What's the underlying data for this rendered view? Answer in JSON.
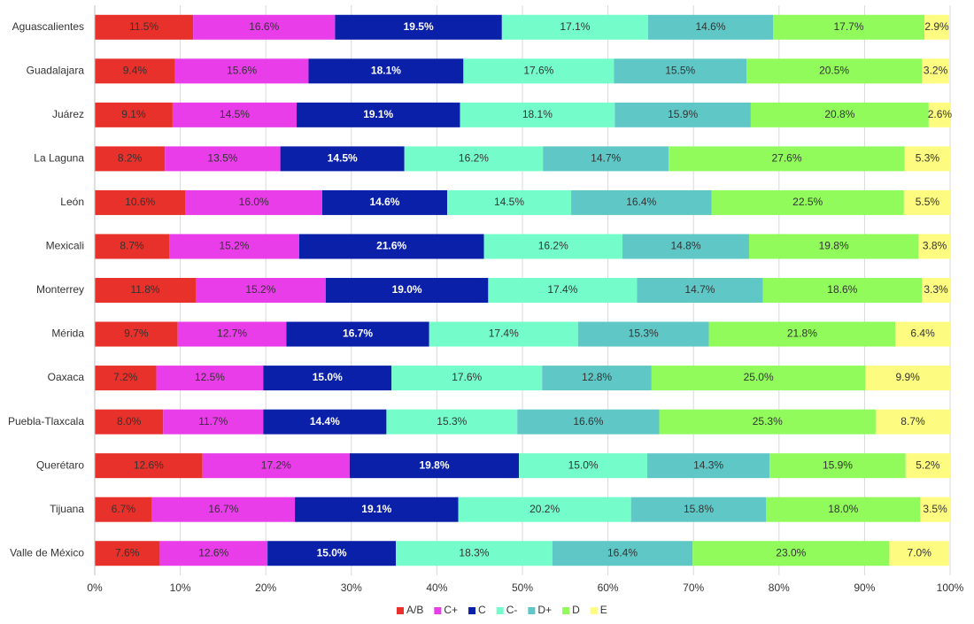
{
  "chart_data": {
    "type": "stacked-bar-horizontal",
    "categories": [
      "Aguascalientes",
      "Guadalajara",
      "Juárez",
      "La Laguna",
      "León",
      "Mexicali",
      "Monterrey",
      "Mérida",
      "Oaxaca",
      "Puebla-Tlaxcala",
      "Querétaro",
      "Tijuana",
      "Valle de México"
    ],
    "series": [
      {
        "name": "A/B",
        "color": "#e8312a",
        "values": [
          11.5,
          9.4,
          9.1,
          8.2,
          10.6,
          8.7,
          11.8,
          9.7,
          7.2,
          8.0,
          12.6,
          6.7,
          7.6
        ],
        "value_labels": [
          "11.5%",
          "9.4%",
          "9.1%",
          "8.2%",
          "10.6%",
          "8.7%",
          "11.8%",
          "9.7%",
          "7.2%",
          "8.0%",
          "12.6%",
          "6.7%",
          "7.6%"
        ]
      },
      {
        "name": "C+",
        "color": "#e83de8",
        "values": [
          16.6,
          15.6,
          14.5,
          13.5,
          16.0,
          15.2,
          15.2,
          12.7,
          12.5,
          11.7,
          17.2,
          16.7,
          12.6
        ],
        "value_labels": [
          "16.6%",
          "15.6%",
          "14.5%",
          "13.5%",
          "16.0%",
          "15.2%",
          "15.2%",
          "12.7%",
          "12.5%",
          "11.7%",
          "17.2%",
          "16.7%",
          "12.6%"
        ]
      },
      {
        "name": "C",
        "color": "#0b20a8",
        "values": [
          19.5,
          18.1,
          19.1,
          14.5,
          14.6,
          21.6,
          19.0,
          16.7,
          15.0,
          14.4,
          19.8,
          19.1,
          15.0
        ],
        "value_labels": [
          "19.5%",
          "18.1%",
          "19.1%",
          "14.5%",
          "14.6%",
          "21.6%",
          "19.0%",
          "16.7%",
          "15.0%",
          "14.4%",
          "19.8%",
          "19.1%",
          "15.0%"
        ]
      },
      {
        "name": "C-",
        "color": "#75fccb",
        "values": [
          17.1,
          17.6,
          18.1,
          16.2,
          14.5,
          16.2,
          17.4,
          17.4,
          17.6,
          15.3,
          15.0,
          20.2,
          18.3
        ],
        "value_labels": [
          "17.1%",
          "17.6%",
          "18.1%",
          "16.2%",
          "14.5%",
          "16.2%",
          "17.4%",
          "17.4%",
          "17.6%",
          "15.3%",
          "15.0%",
          "20.2%",
          "18.3%"
        ]
      },
      {
        "name": "D+",
        "color": "#60c7c7",
        "values": [
          14.6,
          15.5,
          15.9,
          14.7,
          16.4,
          14.8,
          14.7,
          15.3,
          12.8,
          16.6,
          14.3,
          15.8,
          16.4
        ],
        "value_labels": [
          "14.6%",
          "15.5%",
          "15.9%",
          "14.7%",
          "16.4%",
          "14.8%",
          "14.7%",
          "15.3%",
          "12.8%",
          "16.6%",
          "14.3%",
          "15.8%",
          "16.4%"
        ]
      },
      {
        "name": "D",
        "color": "#90fb5b",
        "values": [
          17.7,
          20.5,
          20.8,
          27.6,
          22.5,
          19.8,
          18.6,
          21.8,
          25.0,
          25.3,
          15.9,
          18.0,
          23.0
        ],
        "value_labels": [
          "17.7%",
          "20.5%",
          "20.8%",
          "27.6%",
          "22.5%",
          "19.8%",
          "18.6%",
          "21.8%",
          "25.0%",
          "25.3%",
          "15.9%",
          "18.0%",
          "23.0%"
        ]
      },
      {
        "name": "E",
        "color": "#fdfc80",
        "values": [
          2.9,
          3.2,
          2.6,
          5.3,
          5.5,
          3.8,
          3.3,
          6.4,
          9.9,
          8.7,
          5.2,
          3.5,
          7.0
        ],
        "value_labels": [
          "2.9%",
          "3.2%",
          "2.6%",
          "5.3%",
          "5.5%",
          "3.8%",
          "3.3%",
          "6.4%",
          "9.9%",
          "8.7%",
          "5.2%",
          "3.5%",
          "7.0%"
        ]
      }
    ],
    "xlim": [
      0,
      100
    ],
    "xticks": [
      {
        "value": 0,
        "label": "0%"
      },
      {
        "value": 10,
        "label": "10%"
      },
      {
        "value": 20,
        "label": "20%"
      },
      {
        "value": 30,
        "label": "30%"
      },
      {
        "value": 40,
        "label": "40%"
      },
      {
        "value": 50,
        "label": "50%"
      },
      {
        "value": 60,
        "label": "60%"
      },
      {
        "value": 70,
        "label": "70%"
      },
      {
        "value": 80,
        "label": "80%"
      },
      {
        "value": 90,
        "label": "90%"
      },
      {
        "value": 100,
        "label": "100%"
      }
    ],
    "grid": true,
    "legend": "bottom"
  }
}
